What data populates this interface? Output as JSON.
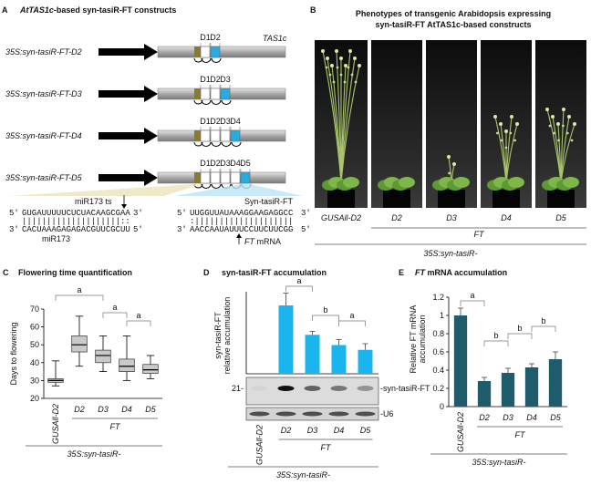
{
  "panel_a": {
    "letter": "A",
    "title_italic": "AtTAS1c",
    "title_rest": "-based syn-tasiR-FT constructs",
    "locus": "TAS1c",
    "constructs": [
      {
        "label": "35S:syn-tasiR-FT-D2",
        "segments": [
          "D1",
          "D2"
        ]
      },
      {
        "label": "35S:syn-tasiR-FT-D3",
        "segments": [
          "D1",
          "D2",
          "D3"
        ]
      },
      {
        "label": "35S:syn-tasiR-FT-D4",
        "segments": [
          "D1",
          "D2",
          "D3",
          "D4"
        ]
      },
      {
        "label": "35S:syn-tasiR-FT-D5",
        "segments": [
          "D1",
          "D2",
          "D3",
          "D4",
          "D5"
        ]
      }
    ],
    "ends": {
      "five": "5'",
      "three": "3'"
    },
    "target_site": {
      "label": "miR173 ts",
      "sequence": "GUGAUUUUUCUCUACAAGCGAA",
      "pairing": "||||||||||||||||||||::",
      "mirna_sequence": "CACUAAAGAGAGACGUUCGCUU",
      "mirna": "miR173"
    },
    "fold": {
      "label": "Syn-tasiR-FT",
      "sequence": "UUGGUUAUAAAGGAAGAGGCC",
      "pairing": ":||||||||||||||||||||",
      "target_sequence": "AACCAAUAUUUCCUUCUUCGG",
      "target_italic": "FT",
      "target_rest": " mRNA"
    }
  },
  "panel_b": {
    "letter": "B",
    "title": [
      "Phenotypes of transgenic Arabidopsis expressing",
      "syn-tasiR-FT AtTAS1c-based constructs"
    ],
    "lanes": [
      "GUSAll-D2",
      "D2",
      "D3",
      "D4",
      "D5"
    ],
    "group_label": "FT",
    "prefix": "35S:syn-tasiR-"
  },
  "chart_data": [
    {
      "type": "box",
      "letter": "C",
      "title": "Flowering time quantification",
      "ylabel": [
        "Days to flowering"
      ],
      "categories": [
        "GUSAll-D2",
        "D2",
        "D3",
        "D4",
        "D5"
      ],
      "min": [
        27,
        38,
        35,
        30,
        31
      ],
      "q1": [
        29,
        46,
        40,
        35,
        34
      ],
      "median": [
        30,
        50,
        44,
        38,
        36
      ],
      "q3": [
        31,
        55,
        47,
        42,
        39
      ],
      "max": [
        41,
        66,
        55,
        55,
        44
      ],
      "color": "#c9c9c9",
      "ylim": [
        20,
        70
      ],
      "yticks": [
        20,
        30,
        40,
        50,
        60,
        70
      ],
      "annotations": [
        "a",
        "a",
        "a"
      ],
      "group_label": "FT",
      "prefix": "35S:syn-tasiR-"
    },
    {
      "type": "bar",
      "letter": "D",
      "title": "syn-tasiR-FT accumulation",
      "ylabel": [
        "syn-tasiR-FT",
        "relative accumulation"
      ],
      "categories": [
        "GUSAll-D2",
        "D2",
        "D3",
        "D4",
        "D5"
      ],
      "values": [
        null,
        1,
        0.57,
        0.42,
        0.35
      ],
      "errors": [
        null,
        0.18,
        0.05,
        0.08,
        0.09
      ],
      "color": "#1ab4ef",
      "ylim": [
        0,
        1.2
      ],
      "blot_labels": {
        "size": "21-",
        "probe": "-syn-tasiR-FT",
        "control": "-U6"
      },
      "annotations": [
        "a",
        "b",
        "a"
      ],
      "group_label": "FT",
      "prefix": "35S:syn-tasiR-"
    },
    {
      "type": "bar",
      "letter": "E",
      "title_italic": "FT",
      "title": " mRNA accumulation",
      "ylabel": [
        "Relative FT mRNA",
        "accumulation"
      ],
      "categories": [
        "GUSAll-D2",
        "D2",
        "D3",
        "D4",
        "D5"
      ],
      "values": [
        1,
        0.28,
        0.37,
        0.43,
        0.52
      ],
      "errors": [
        0.08,
        0.04,
        0.05,
        0.04,
        0.08
      ],
      "color": "#1e5c6b",
      "ylim": [
        0,
        1.2
      ],
      "yticks": [
        0,
        0.2,
        0.4,
        0.6,
        0.8,
        1,
        1.2
      ],
      "annotations": [
        "a",
        "b",
        "b",
        "b"
      ],
      "group_label": "FT",
      "prefix": "35S:syn-tasiR-"
    }
  ]
}
